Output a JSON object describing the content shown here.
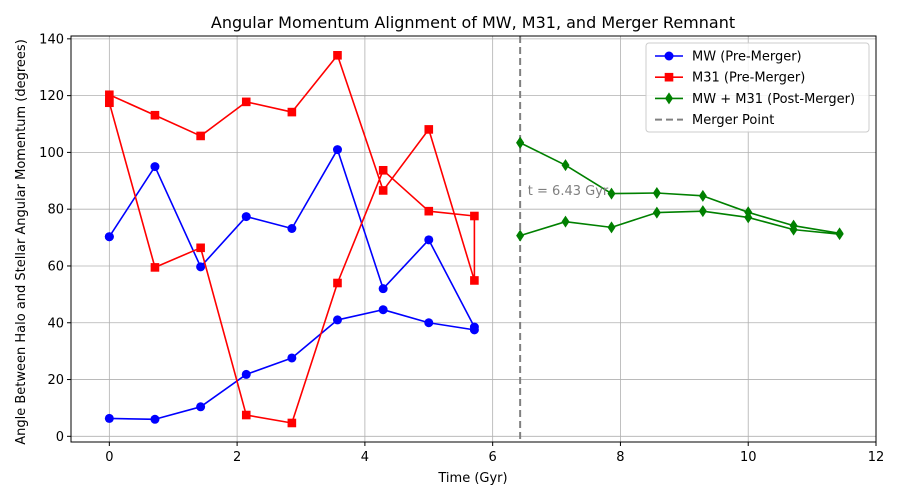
{
  "chart_data": {
    "type": "line",
    "title": "Angular Momentum Alignment of MW, M31, and Merger Remnant",
    "xlabel": "Time (Gyr)",
    "ylabel": "Angle Between Halo and Stellar Angular Momentum (degrees)",
    "xlim": [
      -0.6,
      12
    ],
    "ylim": [
      -2,
      141
    ],
    "xticks": [
      0,
      2,
      4,
      6,
      8,
      10,
      12
    ],
    "yticks": [
      0,
      20,
      40,
      60,
      80,
      100,
      120,
      140
    ],
    "grid": true,
    "legend_position": "top-right",
    "series": [
      {
        "name": "MW (Pre-Merger)",
        "color": "#0000ff",
        "marker": "circle",
        "x": [
          0,
          0.714,
          1.429,
          2.143,
          2.857,
          3.571,
          4.286,
          5.0,
          5.714,
          5.714,
          5.0,
          4.286,
          3.571,
          2.857,
          2.143,
          1.429,
          0.714,
          0,
          0
        ],
        "y": [
          6.3,
          6.0,
          10.4,
          21.8,
          27.6,
          41.0,
          44.6,
          40.0,
          37.5,
          38.5,
          69.2,
          52.0,
          101.0,
          73.2,
          77.4,
          59.7,
          95.0,
          70.3,
          70.3
        ]
      },
      {
        "name": "M31 (Pre-Merger)",
        "color": "#ff0000",
        "marker": "square",
        "x": [
          0,
          0.714,
          1.429,
          2.143,
          2.857,
          3.571,
          4.286,
          5.0,
          5.714,
          5.714,
          5.0,
          4.286,
          3.571,
          2.857,
          2.143,
          1.429,
          0.714,
          0,
          0
        ],
        "y": [
          117.5,
          59.5,
          66.4,
          7.5,
          4.7,
          54.0,
          93.7,
          79.3,
          77.6,
          54.9,
          108.1,
          86.6,
          134.2,
          114.2,
          117.8,
          105.8,
          113.1,
          120.3,
          117.5
        ]
      },
      {
        "name": "MW + M31 (Post-Merger)",
        "color": "#008000",
        "marker": "diamond",
        "x": [
          6.43,
          7.14,
          7.86,
          8.57,
          9.29,
          10.0,
          10.71,
          11.43,
          11.43,
          10.71,
          10.0,
          9.29,
          8.57,
          7.86,
          7.14,
          6.43,
          6.43
        ],
        "y": [
          70.7,
          75.6,
          73.6,
          78.8,
          79.3,
          77.1,
          72.8,
          71.2,
          71.5,
          74.2,
          78.9,
          84.7,
          85.7,
          85.5,
          95.5,
          103.4,
          103.4
        ]
      }
    ],
    "reference_line": {
      "name": "Merger Point",
      "x": 6.43,
      "color": "#808080",
      "style": "dashed"
    },
    "annotation": {
      "text": "t = 6.43 Gyr",
      "x": 6.55,
      "y": 85
    }
  }
}
